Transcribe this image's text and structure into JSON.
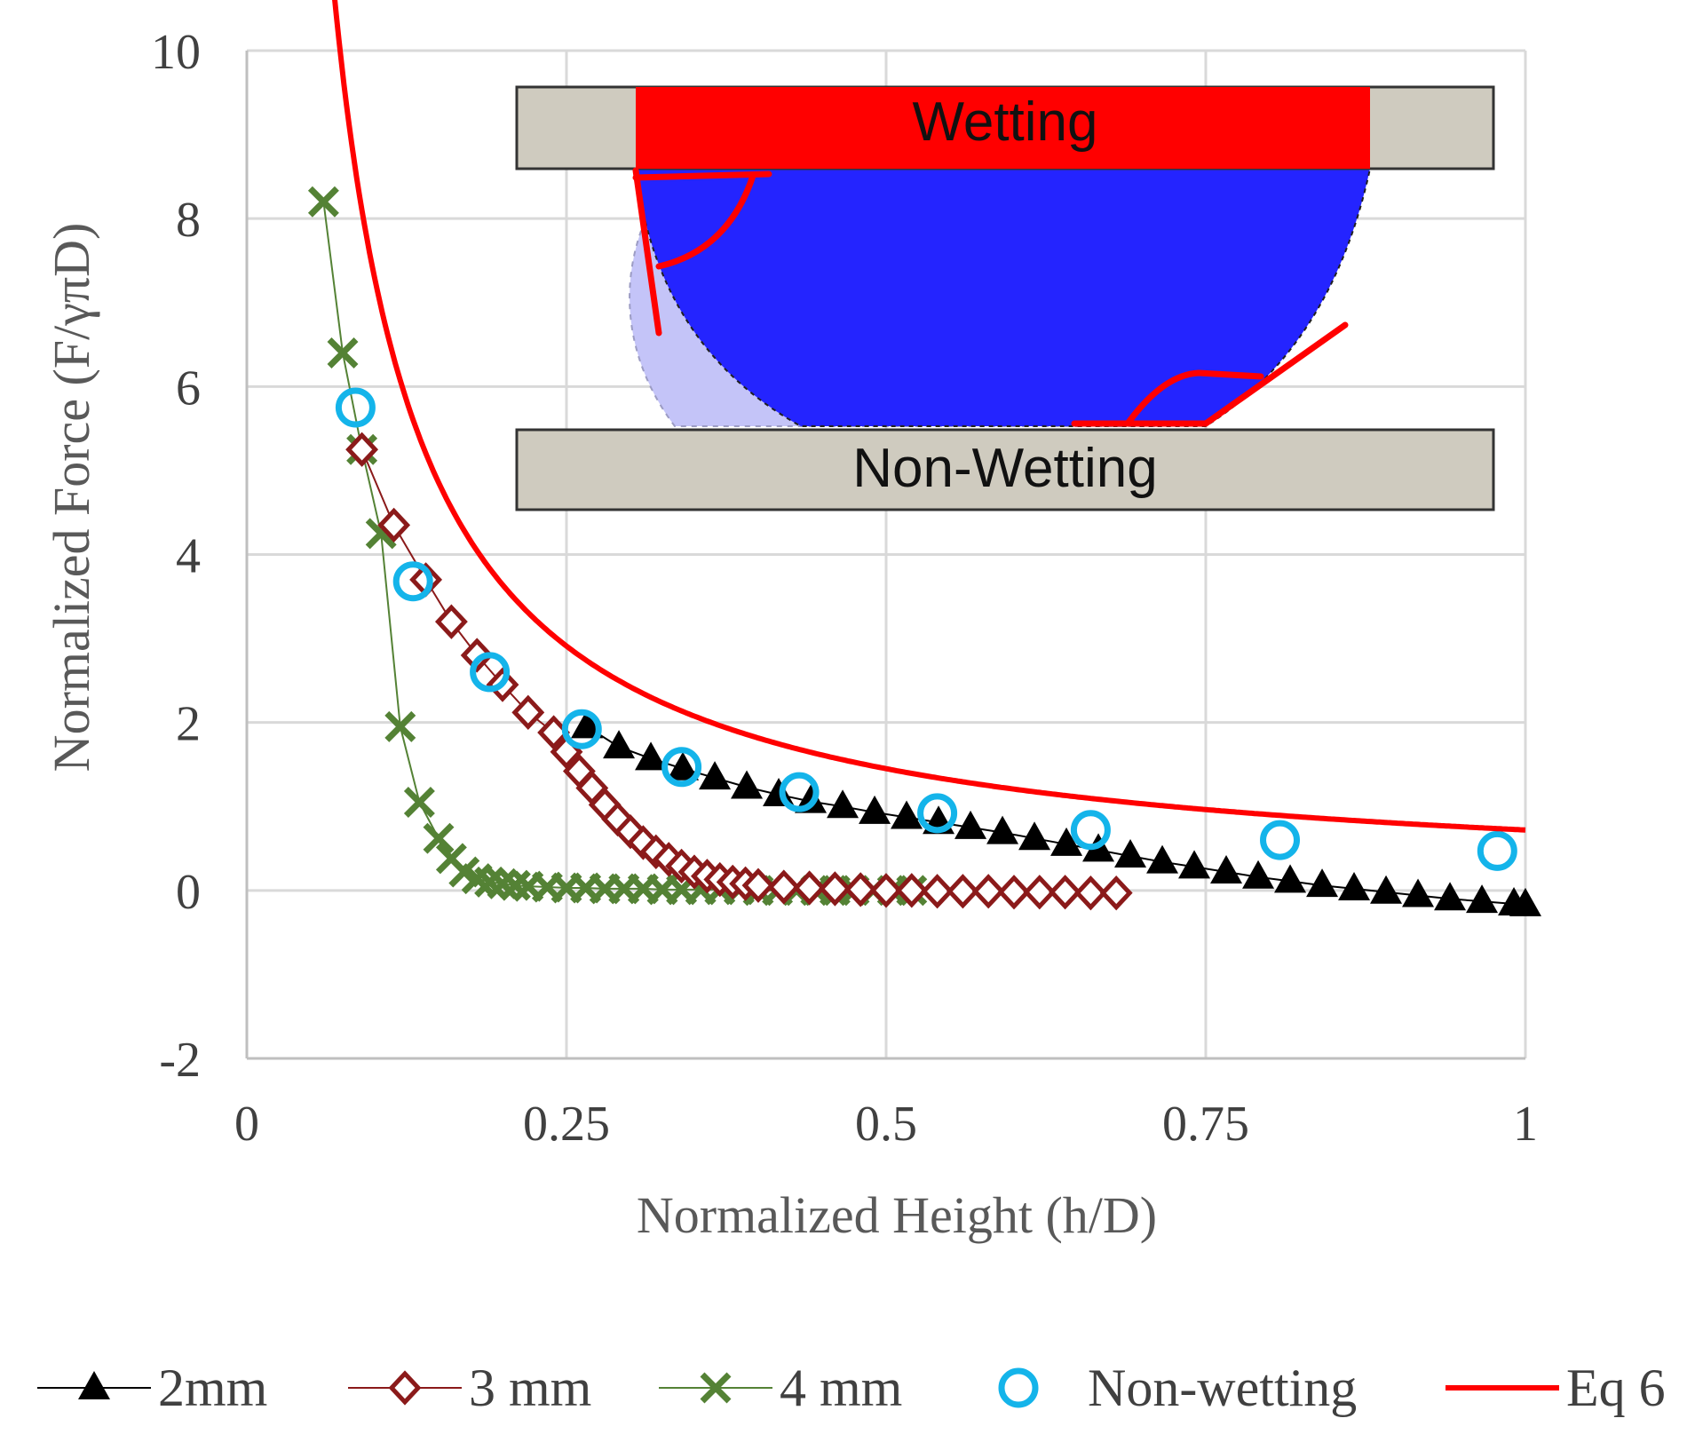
{
  "chart_data": {
    "type": "scatter",
    "title": "",
    "xlabel": "Normalized Height (h/D)",
    "ylabel": "Normalized  Force (F/γπD)",
    "xlim": [
      0,
      1
    ],
    "ylim": [
      -2,
      10
    ],
    "x_ticks": [
      "0",
      "0.25",
      "0.5",
      "0.75",
      "1"
    ],
    "y_ticks": [
      "-2",
      "0",
      "2",
      "4",
      "6",
      "8",
      "10"
    ],
    "grid": true,
    "legend_position": "bottom",
    "colors": {
      "s2mm": "#000000",
      "s3mm": "#8b1a1a",
      "s4mm": "#548235",
      "nonwetting": "#14b4ea",
      "eq6": "#ff0000",
      "grid": "#d9d9d9",
      "axis": "#bfbfbf",
      "plate": "#cfcbbf",
      "wetting_plate": "#ff0000",
      "drop_dark": "#2424ff",
      "drop_light": "#c4c4f8"
    },
    "series": [
      {
        "name": "2mm",
        "marker": "triangle",
        "line": true,
        "x": [
          0.266,
          0.291,
          0.316,
          0.341,
          0.366,
          0.391,
          0.416,
          0.441,
          0.466,
          0.491,
          0.516,
          0.541,
          0.566,
          0.591,
          0.616,
          0.641,
          0.666,
          0.691,
          0.716,
          0.741,
          0.766,
          0.791,
          0.816,
          0.841,
          0.866,
          0.891,
          0.916,
          0.941,
          0.966,
          0.991,
          1.0
        ],
        "y": [
          1.95,
          1.71,
          1.57,
          1.45,
          1.34,
          1.23,
          1.14,
          1.06,
          1.0,
          0.93,
          0.87,
          0.81,
          0.75,
          0.69,
          0.62,
          0.55,
          0.48,
          0.41,
          0.34,
          0.28,
          0.22,
          0.16,
          0.11,
          0.06,
          0.02,
          -0.02,
          -0.06,
          -0.1,
          -0.13,
          -0.16,
          -0.17
        ]
      },
      {
        "name": "3 mm",
        "marker": "diamond",
        "line": true,
        "x": [
          0.09,
          0.115,
          0.14,
          0.16,
          0.18,
          0.2,
          0.22,
          0.24,
          0.25,
          0.26,
          0.27,
          0.28,
          0.29,
          0.3,
          0.31,
          0.32,
          0.33,
          0.34,
          0.35,
          0.36,
          0.37,
          0.38,
          0.39,
          0.4,
          0.42,
          0.44,
          0.46,
          0.48,
          0.5,
          0.52,
          0.54,
          0.56,
          0.58,
          0.6,
          0.62,
          0.64,
          0.66,
          0.68
        ],
        "y": [
          5.25,
          4.35,
          3.7,
          3.2,
          2.8,
          2.45,
          2.12,
          1.88,
          1.65,
          1.42,
          1.22,
          1.02,
          0.85,
          0.7,
          0.57,
          0.46,
          0.37,
          0.29,
          0.22,
          0.17,
          0.13,
          0.1,
          0.08,
          0.06,
          0.04,
          0.03,
          0.02,
          0.01,
          0.0,
          0.0,
          -0.01,
          -0.01,
          -0.01,
          -0.02,
          -0.02,
          -0.02,
          -0.03,
          -0.03
        ]
      },
      {
        "name": "4 mm",
        "marker": "x",
        "line": true,
        "x": [
          0.06,
          0.075,
          0.09,
          0.105,
          0.12,
          0.135,
          0.15,
          0.16,
          0.17,
          0.18,
          0.19,
          0.2,
          0.21,
          0.22,
          0.235,
          0.25,
          0.265,
          0.28,
          0.295,
          0.31,
          0.325,
          0.34,
          0.355,
          0.37,
          0.385,
          0.4,
          0.415,
          0.43,
          0.445,
          0.46,
          0.475,
          0.49,
          0.505,
          0.52
        ],
        "y": [
          8.2,
          6.4,
          5.25,
          4.25,
          1.95,
          1.05,
          0.62,
          0.38,
          0.22,
          0.14,
          0.1,
          0.08,
          0.06,
          0.05,
          0.04,
          0.03,
          0.03,
          0.02,
          0.02,
          0.02,
          0.01,
          0.01,
          0.01,
          0.01,
          0.01,
          0.0,
          0.0,
          0.0,
          0.0,
          0.0,
          0.0,
          0.0,
          0.0,
          0.0
        ]
      },
      {
        "name": "Non-wetting",
        "marker": "circle",
        "line": false,
        "x": [
          0.085,
          0.13,
          0.19,
          0.262,
          0.34,
          0.432,
          0.54,
          0.66,
          0.808,
          0.978
        ],
        "y": [
          5.75,
          3.68,
          2.6,
          1.92,
          1.47,
          1.17,
          0.92,
          0.72,
          0.6,
          0.47
        ]
      },
      {
        "name": "Eq 6",
        "marker": "none",
        "line": true,
        "formula": "y = 0.73 / x - 0.01 (x from 0.052 to 1.0)"
      }
    ],
    "inset": {
      "top_label": "Wetting",
      "bottom_label": "Non-Wetting"
    }
  }
}
